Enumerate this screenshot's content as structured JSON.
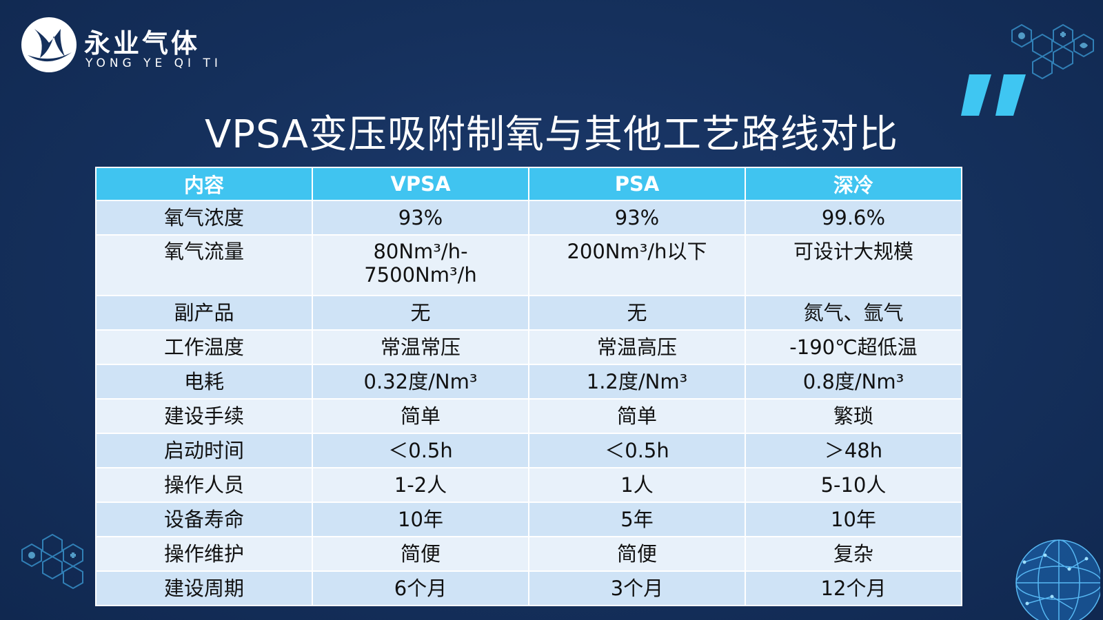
{
  "logo": {
    "cn_name": "永业气体",
    "en_name": "YONG YE QI TI"
  },
  "title": "VPSA变压吸附制氧与其他工艺路线对比",
  "table": {
    "headers": [
      "内容",
      "VPSA",
      "PSA",
      "深冷"
    ],
    "rows": [
      [
        "氧气浓度",
        "93%",
        "93%",
        "99.6%"
      ],
      [
        "氧气流量",
        "80Nm³/h-7500Nm³/h",
        "200Nm³/h以下",
        "可设计大规模"
      ],
      [
        "副产品",
        "无",
        "无",
        "氮气、氩气"
      ],
      [
        "工作温度",
        "常温常压",
        "常温高压",
        "-190℃超低温"
      ],
      [
        "电耗",
        "0.32度/Nm³",
        "1.2度/Nm³",
        "0.8度/Nm³"
      ],
      [
        "建设手续",
        "简单",
        "简单",
        "繁琐"
      ],
      [
        "启动时间",
        "＜0.5h",
        "＜0.5h",
        "＞48h"
      ],
      [
        "操作人员",
        "1-2人",
        "1人",
        "5-10人"
      ],
      [
        "设备寿命",
        "10年",
        "5年",
        "10年"
      ],
      [
        "操作维护",
        "简便",
        "简便",
        "复杂"
      ],
      [
        "建设周期",
        "6个月",
        "3个月",
        "12个月"
      ]
    ]
  },
  "colors": {
    "background": "#15305c",
    "header": "#40c4f0",
    "row_odd": "#cfe3f6",
    "row_even": "#e8f1fa",
    "accent": "#3fc6f2"
  },
  "icons": {
    "logo": "yongye-logo-icon",
    "quote": "quote-mark-icon",
    "hex_top": "medical-hexagon-icon",
    "hex_bottom": "medical-hexagon-icon",
    "globe": "globe-icon"
  }
}
